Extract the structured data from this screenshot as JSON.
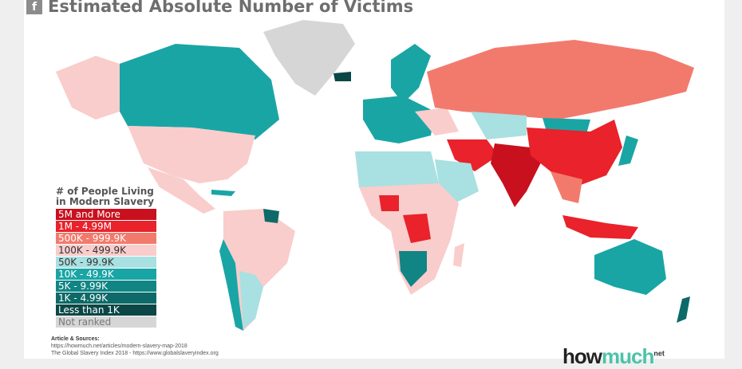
{
  "header": {
    "title": "Estimated Absolute Number of Victims",
    "share_icon": "facebook-icon"
  },
  "legend": {
    "title_line1": "# of People Living",
    "title_line2": "in Modern Slavery",
    "items": [
      {
        "label": "5M and More",
        "color": "#c8101e",
        "text": "#ffffff"
      },
      {
        "label": "1M - 4.99M",
        "color": "#e9222b",
        "text": "#ffffff"
      },
      {
        "label": "500K - 999.9K",
        "color": "#f27a6d",
        "text": "#ffffff"
      },
      {
        "label": "100K - 499.9K",
        "color": "#f9cdcb",
        "text": "#333333"
      },
      {
        "label": "50K - 99.9K",
        "color": "#a9e0e1",
        "text": "#333333"
      },
      {
        "label": "10K - 49.9K",
        "color": "#1aa5a5",
        "text": "#ffffff"
      },
      {
        "label": "5K - 9.99K",
        "color": "#118584",
        "text": "#ffffff"
      },
      {
        "label": "1K - 4.99K",
        "color": "#0d6a68",
        "text": "#ffffff"
      },
      {
        "label": "Less than 1K",
        "color": "#0a4746",
        "text": "#ffffff"
      },
      {
        "label": "Not ranked",
        "color": "#d6d6d6",
        "text": "#777777"
      }
    ]
  },
  "sources": {
    "heading": "Article & Sources:",
    "line1": "https://howmuch.net/articles/modern-slavery-map-2018",
    "line2": "The Global Slavery Index 2018 - https://www.globalslaveryindex.org"
  },
  "logo": {
    "how": "how",
    "much": "much",
    "net": "net"
  }
}
